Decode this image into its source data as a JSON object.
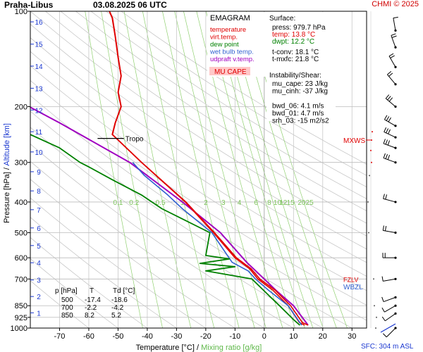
{
  "header": {
    "station": "Praha-Libus",
    "datetime": "03.08.2025 06 UTC",
    "credit": "CHMI © 2025"
  },
  "colors": {
    "temperature": "#e00000",
    "virt_temp": "#e00000",
    "dew_point": "#008000",
    "wet_bulb": "#3060d0",
    "updraft": "#a000c0",
    "mixing_ratio": "#90d070",
    "dry_adiabat": "#c0c0c0",
    "isotherm": "#c8c8c8",
    "axis_blue": "#1a37d0",
    "mu_cape_fill": "#ffc8c8"
  },
  "legend": {
    "title": "EMAGRAM",
    "items": [
      {
        "label": "temperature",
        "color": "#e00000"
      },
      {
        "label": "virt.temp.",
        "color": "#e00000"
      },
      {
        "label": "dew point",
        "color": "#008000"
      },
      {
        "label": "wet bulb temp.",
        "color": "#3060d0"
      },
      {
        "label": "udpraft v.temp.",
        "color": "#a000c0"
      }
    ],
    "mu_cape_label": "MU CAPE"
  },
  "surface": {
    "title": "Surface:",
    "press": "press: 979.7 hPa",
    "temp": "temp: 13.8 °C",
    "dwpt": "dwpt: 12.2 °C",
    "tconv": "t-conv: 18.1 °C",
    "tmxfc": "t-mxfc: 21.8 °C"
  },
  "instability": {
    "title": "Instability/Shear:",
    "lines": [
      "mu_cape: 23 J/kg",
      "mu_cinh: -37 J/kg",
      "",
      "bwd_06: 4.1 m/s",
      "bwd_01: 4.7 m/s",
      "srh_03: -15 m2/s2"
    ]
  },
  "table": {
    "headers": [
      "p [hPa]",
      "T",
      "Td [°C]"
    ],
    "rows": [
      [
        "500",
        "-17.4",
        "-18.6"
      ],
      [
        "700",
        "-2.2",
        "-4.2"
      ],
      [
        "850",
        "8.2",
        "5.2"
      ]
    ]
  },
  "annotations": {
    "tropo": "Tropo",
    "mxws": "MXWS",
    "wbzl": "WBZL",
    "fzlv": "FZLV",
    "sfc": "SFC: 304 m ASL"
  },
  "chart_data": {
    "type": "line",
    "title": "Praha-Libus 03.08.2025 06 UTC",
    "xlabel": "Temperature [°C]",
    "xlabel2": "Mixing ratio [g/kg]",
    "xlabel_sep": "/",
    "ylabel": "Pressure [hPa]",
    "ylabel2": "Altitude [km]",
    "y_scale": "log",
    "xlim": [
      -80,
      35
    ],
    "ylim": [
      1000,
      100
    ],
    "x_ticks": [
      "-70",
      "-60",
      "-50",
      "-40",
      "-30",
      "-20",
      "-10",
      "0",
      "10",
      "20",
      "30"
    ],
    "x_tick_values": [
      -70,
      -60,
      -50,
      -40,
      -30,
      -20,
      -10,
      0,
      10,
      20,
      30
    ],
    "p_ticks": [
      1000,
      925,
      850,
      700,
      600,
      500,
      400,
      300,
      200,
      100
    ],
    "alt_ticks": [
      {
        "km": 1,
        "p": 895
      },
      {
        "km": 2,
        "p": 795
      },
      {
        "km": 3,
        "p": 705
      },
      {
        "km": 4,
        "p": 622
      },
      {
        "km": 5,
        "p": 549
      },
      {
        "km": 6,
        "p": 483
      },
      {
        "km": 7,
        "p": 423
      },
      {
        "km": 8,
        "p": 369
      },
      {
        "km": 9,
        "p": 321
      },
      {
        "km": 10,
        "p": 278
      },
      {
        "km": 11,
        "p": 240
      },
      {
        "km": 12,
        "p": 205
      },
      {
        "km": 13,
        "p": 175
      },
      {
        "km": 14,
        "p": 149
      },
      {
        "km": 15,
        "p": 127
      },
      {
        "km": 16,
        "p": 108
      }
    ],
    "mixing_ratio_labels": [
      "0.1",
      "0.2",
      "0.5",
      "1",
      "2",
      "3",
      "4",
      "6",
      "8",
      "10",
      "12",
      "15",
      "20",
      "25"
    ],
    "mixing_ratio_label_x": [
      -50,
      -44.5,
      -35.5,
      -28,
      -20,
      -14,
      -8.5,
      -2.8,
      1.7,
      4.5,
      6.5,
      9,
      12.8,
      15.5
    ],
    "mixing_ratio_label_p": 408,
    "series": [
      {
        "name": "temperature",
        "color": "#e00000",
        "points": [
          [
            13.8,
            979
          ],
          [
            12,
            960
          ],
          [
            8.2,
            850
          ],
          [
            3,
            760
          ],
          [
            -2.2,
            700
          ],
          [
            -5,
            650
          ],
          [
            -10,
            600
          ],
          [
            -17.4,
            500
          ],
          [
            -27,
            400
          ],
          [
            -42,
            300
          ],
          [
            -50,
            255
          ],
          [
            -52,
            245
          ],
          [
            -51,
            225
          ],
          [
            -49,
            200
          ],
          [
            -50,
            180
          ],
          [
            -49,
            160
          ],
          [
            -50,
            140
          ],
          [
            -51,
            120
          ],
          [
            -52,
            105
          ],
          [
            -53,
            100
          ]
        ]
      },
      {
        "name": "virt.temp.",
        "color": "#e00000",
        "points": [
          [
            15,
            979
          ],
          [
            13,
            960
          ],
          [
            9,
            850
          ],
          [
            3.8,
            760
          ],
          [
            -1.5,
            700
          ],
          [
            -4.5,
            650
          ],
          [
            -9.5,
            600
          ],
          [
            -17,
            500
          ],
          [
            -26.8,
            400
          ],
          [
            -41.9,
            300
          ],
          [
            -49.9,
            255
          ],
          [
            -51.9,
            245
          ],
          [
            -50.9,
            225
          ],
          [
            -48.9,
            200
          ],
          [
            -49.9,
            180
          ],
          [
            -48.9,
            160
          ],
          [
            -49.9,
            140
          ],
          [
            -50.9,
            120
          ],
          [
            -51.9,
            105
          ],
          [
            -52.9,
            100
          ]
        ]
      },
      {
        "name": "dew point",
        "color": "#008000",
        "points": [
          [
            12.2,
            979
          ],
          [
            10,
            940
          ],
          [
            5.2,
            850
          ],
          [
            1,
            780
          ],
          [
            -4.2,
            700
          ],
          [
            -20,
            660
          ],
          [
            -10,
            640
          ],
          [
            -22,
            625
          ],
          [
            -12,
            605
          ],
          [
            -20,
            590
          ],
          [
            -18.6,
            500
          ],
          [
            -35,
            420
          ],
          [
            -42,
            380
          ],
          [
            -52,
            340
          ],
          [
            -60,
            310
          ],
          [
            -63,
            300
          ],
          [
            -70,
            270
          ],
          [
            -80,
            245
          ]
        ]
      },
      {
        "name": "wet bulb temp.",
        "color": "#3060d0",
        "points": [
          [
            12.8,
            979
          ],
          [
            8.2,
            850
          ],
          [
            1.5,
            760
          ],
          [
            -3,
            700
          ],
          [
            -5.5,
            660
          ],
          [
            -11,
            620
          ],
          [
            -17.9,
            500
          ],
          [
            -28,
            420
          ],
          [
            -33,
            380
          ],
          [
            -41,
            330
          ],
          [
            -45,
            300
          ]
        ]
      },
      {
        "name": "udpraft v.temp.",
        "color": "#a000c0",
        "points": [
          [
            15,
            979
          ],
          [
            10,
            850
          ],
          [
            4,
            760
          ],
          [
            0,
            700
          ],
          [
            -6,
            620
          ],
          [
            -15,
            500
          ],
          [
            -28,
            400
          ],
          [
            -46,
            300
          ],
          [
            -70,
            225
          ],
          [
            -85,
            190
          ]
        ]
      }
    ],
    "markers": {
      "tropo_p": 252,
      "mxws_p": 255,
      "wbzl_p": 740,
      "fzlv_p": 700
    }
  },
  "wind": {
    "levels_p": [
      1000,
      900,
      850,
      800,
      700,
      600,
      500,
      400,
      300,
      270,
      250,
      230,
      200,
      170,
      150,
      130,
      115
    ],
    "direction_deg": [
      225,
      235,
      240,
      250,
      260,
      270,
      280,
      285,
      290,
      290,
      295,
      300,
      310,
      320,
      330,
      340,
      350
    ],
    "speed_ms": [
      3,
      4,
      4,
      5,
      7,
      8,
      9,
      12,
      16,
      18,
      18,
      17,
      15,
      12,
      10,
      8,
      7
    ]
  }
}
